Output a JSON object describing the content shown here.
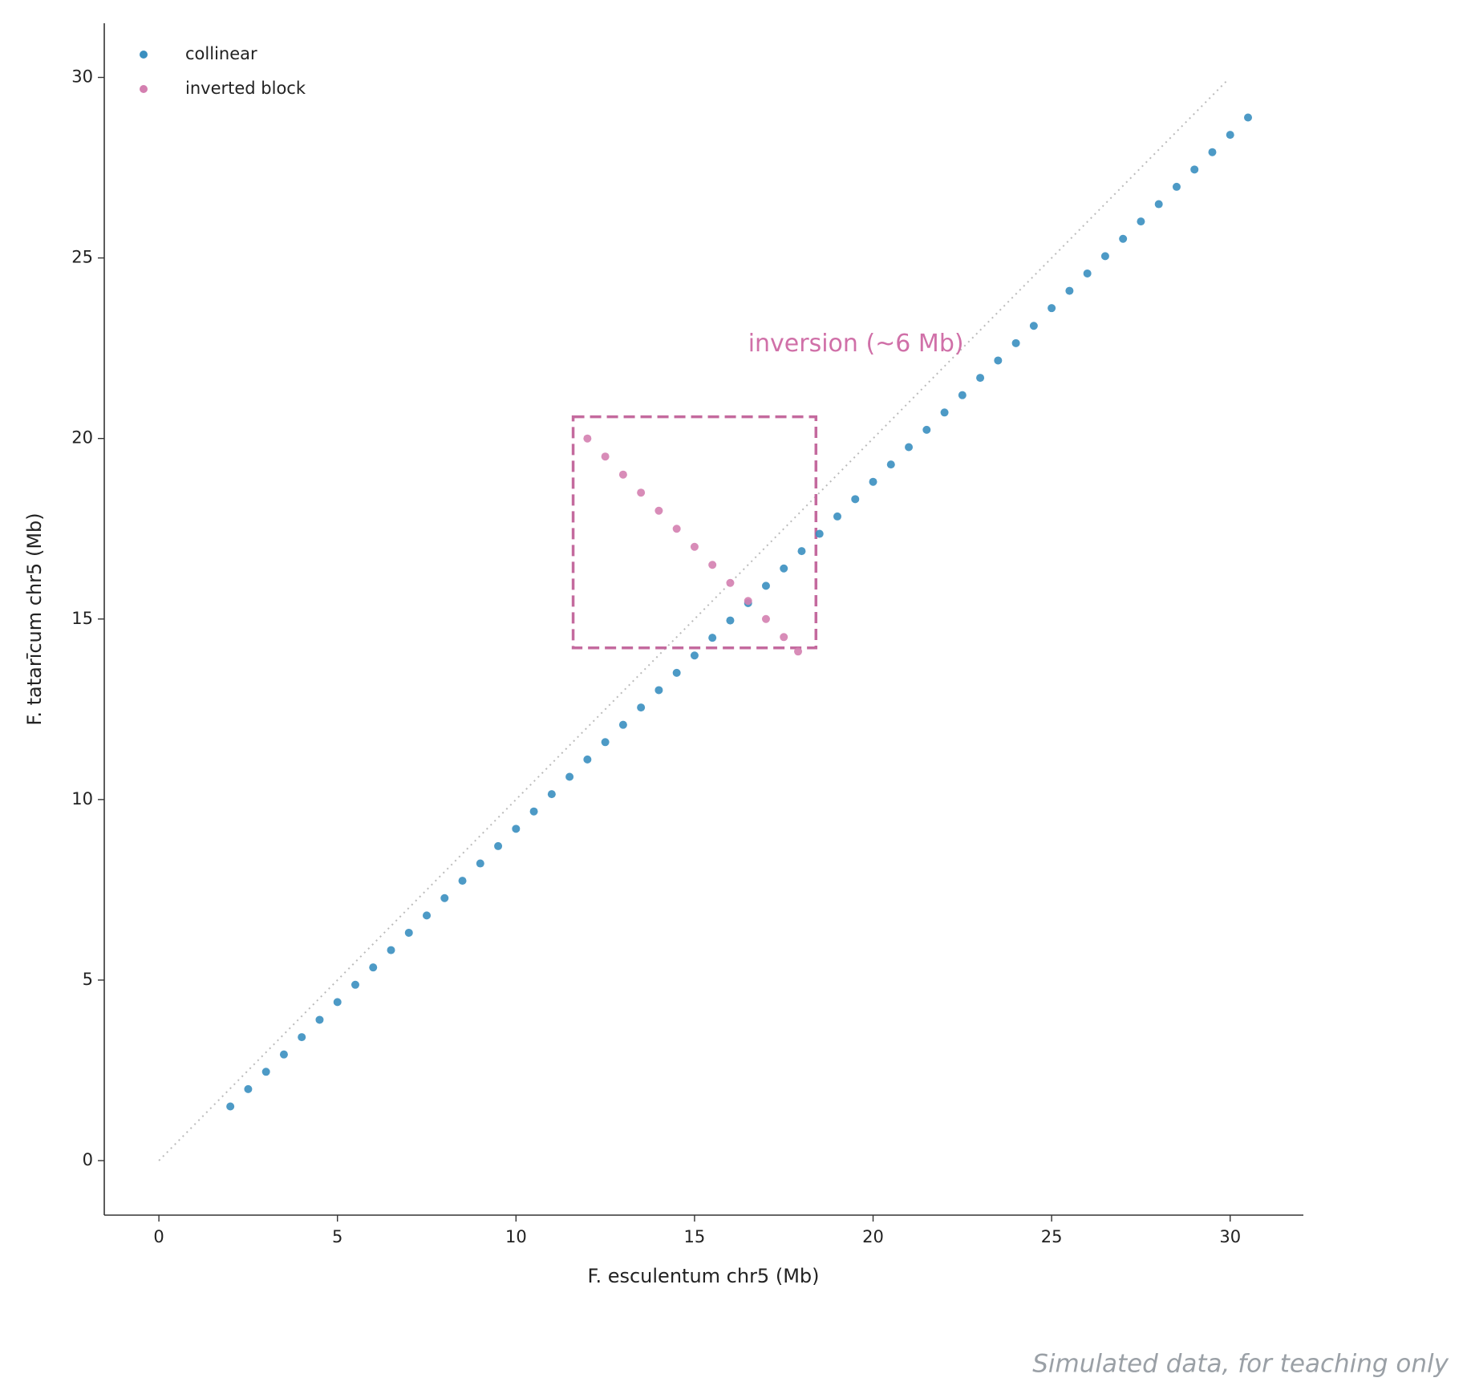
{
  "chart_data": {
    "type": "scatter",
    "x_label": "F. esculentum chr5 (Mb)",
    "y_label": "F. tatarīcum chr5 (Mb)",
    "xlim": [
      -1.53,
      32.05
    ],
    "ylim": [
      -1.51,
      31.5
    ],
    "xticks": [
      0,
      5,
      10,
      15,
      20,
      25,
      30
    ],
    "yticks": [
      0,
      5,
      10,
      15,
      20,
      25,
      30
    ],
    "legend": "upper left",
    "series": [
      {
        "name": "collinear",
        "color": "#3a8fc0",
        "x": [
          2,
          2.5,
          3,
          3.5,
          4,
          4.5,
          5,
          5.5,
          6,
          6.5,
          7,
          7.5,
          8,
          8.5,
          9,
          9.5,
          10,
          10.5,
          11,
          11.5,
          12,
          12.5,
          13,
          13.5,
          14,
          14.5,
          15,
          15.5,
          16,
          16.5,
          17,
          17.5,
          18,
          18.5,
          19,
          19.5,
          20,
          20.5,
          21,
          21.5,
          22,
          22.5,
          23,
          23.5,
          24,
          24.5,
          25,
          25.5,
          26,
          26.5,
          27,
          27.5,
          28,
          28.5,
          29,
          29.5,
          30,
          30.5
        ],
        "values": [
          1.5,
          1.98,
          2.46,
          2.94,
          3.42,
          3.9,
          4.39,
          4.87,
          5.35,
          5.83,
          6.31,
          6.79,
          7.27,
          7.75,
          8.23,
          8.71,
          9.19,
          9.67,
          10.15,
          10.63,
          11.11,
          11.59,
          12.07,
          12.55,
          13.03,
          13.51,
          13.99,
          14.48,
          14.96,
          15.44,
          15.92,
          16.4,
          16.88,
          17.36,
          17.84,
          18.32,
          18.8,
          19.28,
          19.76,
          20.24,
          20.72,
          21.2,
          21.68,
          22.16,
          22.64,
          23.12,
          23.61,
          24.09,
          24.57,
          25.05,
          25.53,
          26.01,
          26.49,
          26.97,
          27.45,
          27.93,
          28.41,
          28.89
        ]
      },
      {
        "name": "inverted block",
        "color": "#d47fb0",
        "x": [
          12,
          12.5,
          13,
          13.5,
          14,
          14.5,
          15,
          15.5,
          16,
          16.5,
          17,
          17.5,
          17.9
        ],
        "values": [
          20,
          19.5,
          19,
          18.5,
          18,
          17.5,
          17,
          16.5,
          16,
          15.5,
          15,
          14.5,
          14.1
        ]
      }
    ],
    "reference_line": {
      "x": [
        0,
        29.9
      ],
      "values": [
        0,
        29.9
      ],
      "color": "#bbbbbb"
    },
    "highlight_box": {
      "x": [
        11.6,
        18.4
      ],
      "values": [
        14.2,
        20.6
      ],
      "color": "#c46a9e"
    },
    "annotation": {
      "text": "inversion (~6 Mb)",
      "x": 16.5,
      "y": 22.6,
      "color": "#d070a8"
    },
    "footnote": "Simulated data, for teaching only"
  }
}
